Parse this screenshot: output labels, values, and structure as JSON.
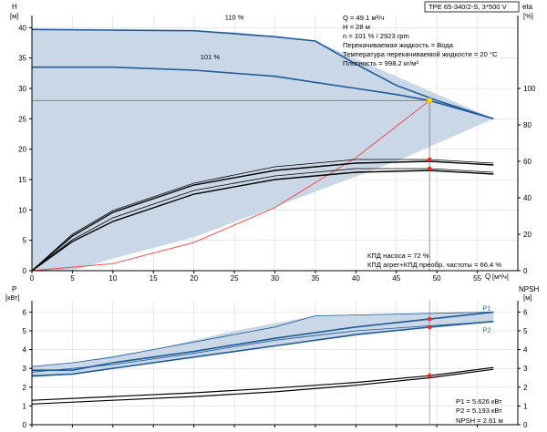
{
  "chart_data": [
    {
      "type": "line",
      "title": "TPE 65-340/2-S, 3*500 V",
      "ylabel": "H",
      "yunit": "[м]",
      "y2label": "eta",
      "y2unit": "[%]",
      "xlabel": "Q",
      "xunit": "[м³/ч]",
      "xlim": [
        0,
        60
      ],
      "ylim": [
        0,
        42
      ],
      "y2lim": [
        0,
        140
      ],
      "x_ticks": [
        0,
        5,
        10,
        15,
        20,
        25,
        30,
        35,
        40,
        45,
        50,
        55
      ],
      "y_ticks": [
        0,
        5,
        10,
        15,
        20,
        25,
        30,
        35,
        40
      ],
      "y2_ticks": [
        0,
        20,
        40,
        60,
        80,
        100
      ],
      "grid": true,
      "colors": {
        "fill": "#c9d7e6",
        "curve": "#1f5a99",
        "system": "#ff3b3b",
        "efficiency": "#000000",
        "lines": "#777777"
      },
      "region": {
        "upper_x": [
          0,
          5,
          15,
          25,
          35,
          57
        ],
        "upper_y": [
          39.7,
          39.6,
          39.5,
          39.3,
          37.8,
          25
        ],
        "lower_x": [
          57,
          45,
          30,
          20,
          10,
          5,
          2
        ],
        "lower_y": [
          25,
          18,
          10.5,
          5.5,
          2,
          0,
          0
        ]
      },
      "series": [
        {
          "name": "110 %",
          "x": [
            0,
            10,
            20,
            30,
            35,
            40,
            45,
            50,
            57
          ],
          "y": [
            39.7,
            39.6,
            39.5,
            38.5,
            37.8,
            34,
            30.5,
            28,
            25
          ]
        },
        {
          "name": "101 %",
          "x": [
            0,
            10,
            20,
            30,
            40,
            45,
            49.1,
            57
          ],
          "y": [
            33.5,
            33.5,
            33,
            32,
            30,
            29,
            28,
            25
          ]
        },
        {
          "name": "",
          "role": "system",
          "x": [
            0,
            10,
            20,
            30,
            40,
            49.1
          ],
          "y": [
            0,
            1.16,
            4.64,
            10.4,
            18.6,
            28
          ]
        },
        {
          "name": "",
          "role": "efficiency",
          "axis": "y2",
          "x": [
            0,
            5,
            10,
            20,
            30,
            40,
            49.1,
            57
          ],
          "y": [
            0,
            20,
            33,
            48,
            57,
            61,
            61,
            59
          ]
        },
        {
          "name": "",
          "role": "efficiency",
          "axis": "y2",
          "x": [
            0,
            5,
            10,
            20,
            30,
            40,
            49.1,
            57
          ],
          "y": [
            0,
            19,
            32,
            47,
            55,
            59,
            60,
            58
          ]
        },
        {
          "name": "",
          "role": "efficiency",
          "axis": "y2",
          "x": [
            0,
            5,
            10,
            20,
            30,
            40,
            49.1,
            57
          ],
          "y": [
            0,
            17,
            29,
            44,
            52,
            56,
            56,
            54
          ]
        },
        {
          "name": "",
          "role": "efficiency",
          "axis": "y2",
          "x": [
            0,
            5,
            10,
            20,
            30,
            40,
            49.1,
            57
          ],
          "y": [
            0,
            16,
            27,
            42,
            50,
            54,
            55,
            53
          ]
        }
      ],
      "duty_point": {
        "x": 49.1,
        "y": 28
      },
      "annotations": {
        "q": "Q = 49.1 м³/ч",
        "h": "H = 28 м",
        "n": "n = 101 % / 2923 rpm",
        "liquid": "Перекачиваемая жидкость = Вода",
        "temp": "Температура перекачиваемой жидкости = 20 °C",
        "density": "Плотность = 998.2 кг/м³",
        "eta_pump": "КПД насоса = 72 %",
        "eta_total": "КПД агрег+КПД преобр. частоты = 66.4 %"
      }
    },
    {
      "type": "line",
      "ylabel": "P",
      "yunit": "[кВт]",
      "y2label": "NPSH",
      "y2unit": "[м]",
      "xlim": [
        0,
        60
      ],
      "ylim": [
        0,
        6.6
      ],
      "y2lim": [
        0,
        6.6
      ],
      "y_ticks": [
        0,
        1,
        2,
        3,
        4,
        5,
        6
      ],
      "y2_ticks": [
        0,
        1,
        2,
        3,
        4,
        5,
        6
      ],
      "grid": true,
      "region": {
        "upper_x": [
          0,
          5,
          15,
          25,
          35,
          57
        ],
        "upper_y": [
          3.1,
          3.3,
          4.0,
          5.0,
          5.8,
          6.0
        ],
        "lower_x": [
          57,
          45,
          30,
          20,
          10,
          5,
          0
        ],
        "lower_y": [
          5.5,
          5.0,
          4.2,
          3.6,
          3.0,
          2.7,
          2.5
        ]
      },
      "series": [
        {
          "name": "P1",
          "x": [
            0,
            5,
            10,
            20,
            30,
            40,
            49.1,
            57
          ],
          "y": [
            2.9,
            2.9,
            3.3,
            3.9,
            4.6,
            5.2,
            5.626,
            6.0
          ]
        },
        {
          "name": "P2",
          "x": [
            0,
            5,
            10,
            20,
            30,
            40,
            49.1,
            57
          ],
          "y": [
            2.6,
            2.7,
            3.0,
            3.6,
            4.2,
            4.8,
            5.193,
            5.5
          ]
        },
        {
          "name": "",
          "role": "edge",
          "x": [
            0,
            5,
            10,
            20,
            30,
            35,
            57
          ],
          "y": [
            3.1,
            3.3,
            3.6,
            4.4,
            5.2,
            5.8,
            6.0
          ]
        },
        {
          "name": "",
          "role": "edge",
          "x": [
            0,
            10,
            20,
            30,
            40,
            57
          ],
          "y": [
            2.8,
            3.2,
            3.8,
            4.5,
            5.0,
            5.5
          ]
        },
        {
          "name": "",
          "role": "npsh",
          "x": [
            0,
            10,
            20,
            30,
            40,
            49.1,
            57
          ],
          "y": [
            1.3,
            1.5,
            1.7,
            1.95,
            2.25,
            2.61,
            3.05
          ]
        },
        {
          "name": "",
          "role": "npsh",
          "x": [
            0,
            10,
            20,
            30,
            40,
            49.1,
            57
          ],
          "y": [
            1.1,
            1.3,
            1.5,
            1.75,
            2.1,
            2.5,
            2.95
          ]
        }
      ],
      "markers": [
        {
          "x": 49.1,
          "y": 5.626
        },
        {
          "x": 49.1,
          "y": 5.193
        },
        {
          "x": 49.1,
          "y": 2.61
        }
      ],
      "annotations": {
        "p1": "P1 = 5.626 кВт",
        "p2": "P2 = 5.193 кВт",
        "npsh": "NPSH = 2.61 м"
      }
    }
  ]
}
